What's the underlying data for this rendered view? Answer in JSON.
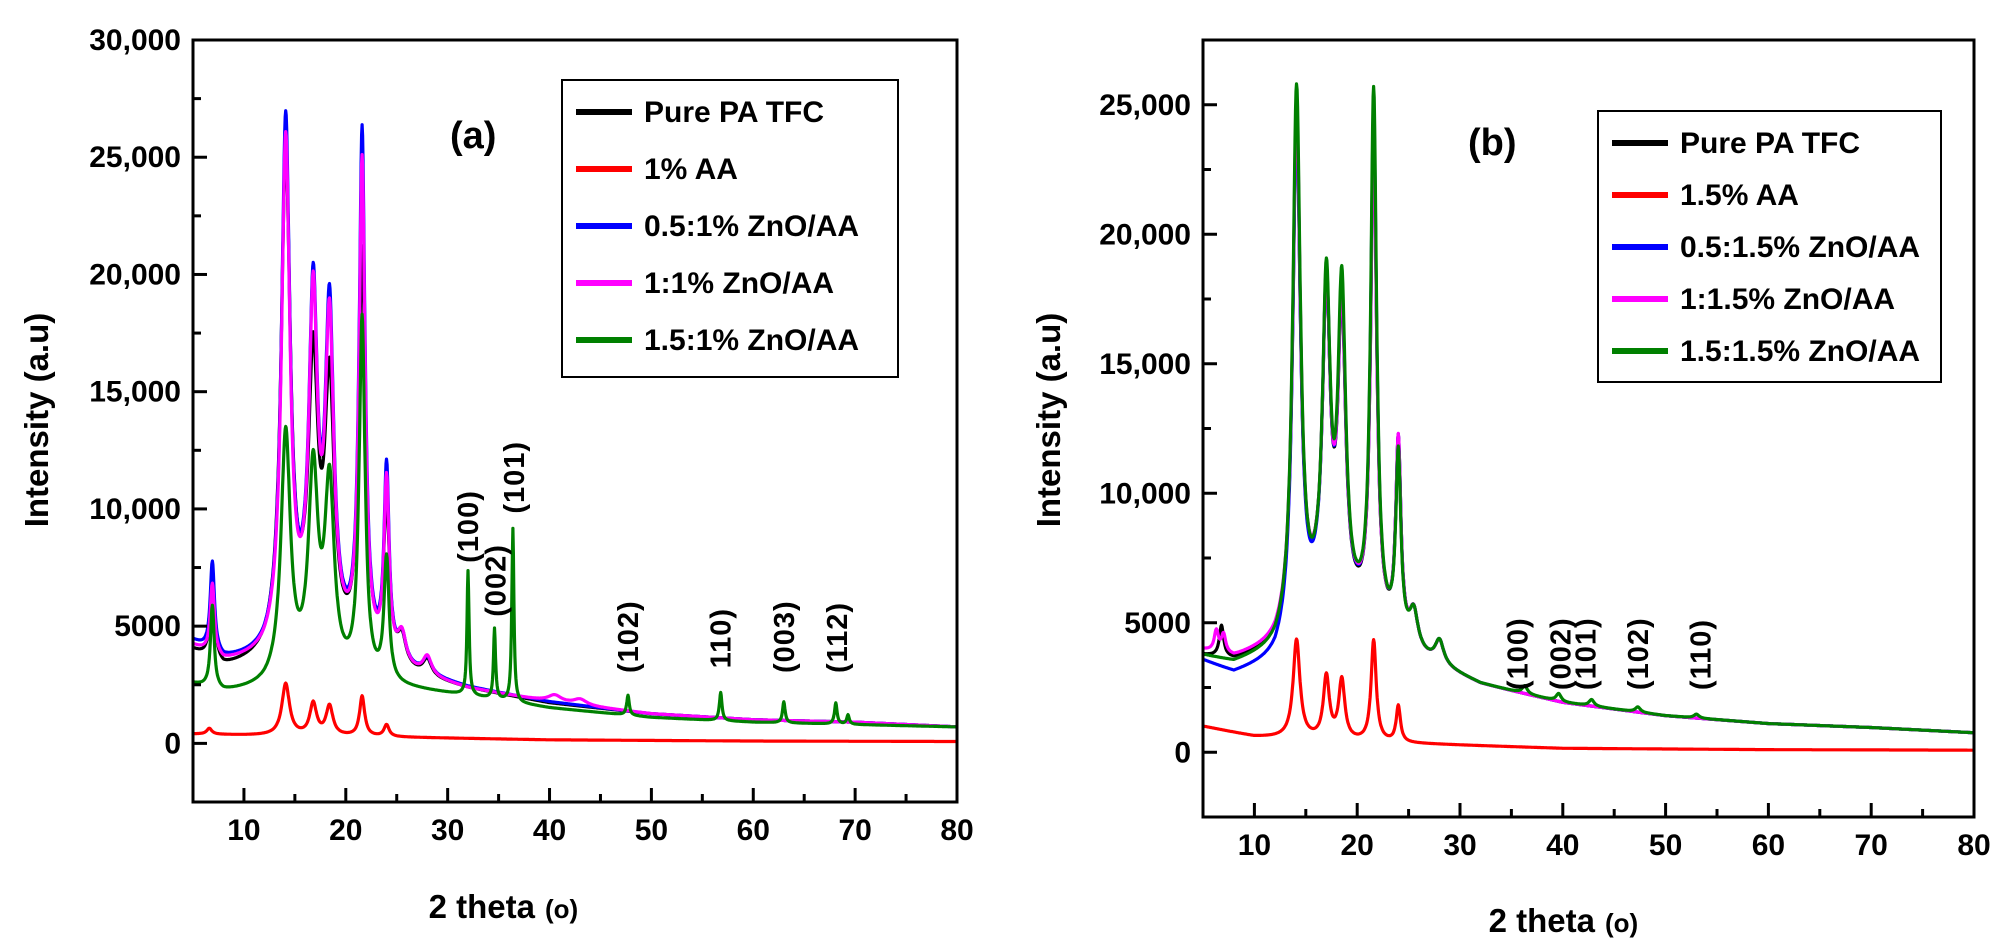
{
  "chart_data": [
    {
      "type": "line",
      "panel_label": "(a)",
      "xlabel": "2 theta",
      "xunit": "(o)",
      "ylabel": "Intensity (a.u)",
      "xlim": [
        5,
        80
      ],
      "ylim": [
        -2500,
        30000
      ],
      "xticks": [
        10,
        20,
        30,
        40,
        50,
        60,
        70,
        80
      ],
      "xtick_labels": [
        "10",
        "20",
        "30",
        "40",
        "50",
        "60",
        "70",
        "80"
      ],
      "yticks": [
        0,
        5000,
        10000,
        15000,
        20000,
        25000,
        30000
      ],
      "ytick_labels": [
        "0",
        "5000",
        "10,000",
        "15,000",
        "20,000",
        "25,000",
        "30,000"
      ],
      "legend_position": "top-right",
      "series": [
        {
          "name": "Pure PA TFC",
          "color": "#000000",
          "baseline": [
            [
              5,
              3900
            ],
            [
              8,
              3150
            ],
            [
              12,
              3400
            ],
            [
              16,
              4000
            ],
            [
              20,
              3700
            ],
            [
              26,
              2900
            ],
            [
              32,
              2300
            ],
            [
              40,
              1700
            ],
            [
              50,
              1250
            ],
            [
              60,
              1000
            ],
            [
              70,
              900
            ],
            [
              80,
              700
            ]
          ],
          "peaks": [
            [
              6.9,
              3800,
              0.25
            ],
            [
              14.1,
              21000,
              0.55
            ],
            [
              16.8,
              11500,
              0.55
            ],
            [
              18.4,
              10800,
              0.55
            ],
            [
              21.6,
              17000,
              0.4
            ],
            [
              24,
              6500,
              0.35
            ],
            [
              25.5,
              1200,
              0.5
            ],
            [
              28,
              700,
              0.5
            ]
          ]
        },
        {
          "name": "1% AA",
          "color": "#ff0000",
          "baseline": [
            [
              5,
              400
            ],
            [
              10,
              350
            ],
            [
              20,
              300
            ],
            [
              40,
              150
            ],
            [
              60,
              100
            ],
            [
              80,
              80
            ]
          ],
          "peaks": [
            [
              6.6,
              250,
              0.3
            ],
            [
              14.1,
              2200,
              0.45
            ],
            [
              16.8,
              1350,
              0.4
            ],
            [
              18.4,
              1250,
              0.4
            ],
            [
              21.6,
              1700,
              0.3
            ],
            [
              24,
              500,
              0.3
            ]
          ]
        },
        {
          "name": "0.5:1% ZnO/AA",
          "color": "#0000ff",
          "baseline": [
            [
              5,
              4300
            ],
            [
              8,
              3500
            ],
            [
              12,
              3600
            ],
            [
              16,
              4300
            ],
            [
              20,
              3900
            ],
            [
              26,
              3000
            ],
            [
              32,
              2350
            ],
            [
              40,
              1750
            ],
            [
              50,
              1250
            ],
            [
              60,
              1000
            ],
            [
              70,
              900
            ],
            [
              80,
              700
            ]
          ],
          "peaks": [
            [
              6.9,
              3800,
              0.25
            ],
            [
              14.1,
              22300,
              0.5
            ],
            [
              16.8,
              14200,
              0.5
            ],
            [
              18.4,
              13700,
              0.5
            ],
            [
              21.6,
              22000,
              0.35
            ],
            [
              24,
              8000,
              0.3
            ],
            [
              25.5,
              1200,
              0.5
            ],
            [
              28,
              700,
              0.5
            ]
          ]
        },
        {
          "name": "1:1% ZnO/AA",
          "color": "#ff00ff",
          "baseline": [
            [
              5,
              4100
            ],
            [
              8,
              3400
            ],
            [
              12,
              3550
            ],
            [
              16,
              4200
            ],
            [
              20,
              3850
            ],
            [
              26,
              2950
            ],
            [
              32,
              2300
            ],
            [
              40,
              1750
            ],
            [
              50,
              1250
            ],
            [
              60,
              1000
            ],
            [
              70,
              900
            ],
            [
              80,
              700
            ]
          ],
          "peaks": [
            [
              6.9,
              3000,
              0.25
            ],
            [
              14.1,
              21500,
              0.5
            ],
            [
              16.8,
              14000,
              0.5
            ],
            [
              18.4,
              13200,
              0.5
            ],
            [
              21.6,
              20800,
              0.35
            ],
            [
              24,
              7500,
              0.3
            ],
            [
              25.5,
              1300,
              0.5
            ],
            [
              28,
              800,
              0.5
            ],
            [
              40.5,
              300,
              0.8
            ],
            [
              43,
              250,
              0.8
            ]
          ]
        },
        {
          "name": "1.5:1% ZnO/AA",
          "color": "#008000",
          "baseline": [
            [
              5,
              2500
            ],
            [
              8,
              2150
            ],
            [
              12,
              2300
            ],
            [
              16,
              2700
            ],
            [
              20,
              2600
            ],
            [
              26,
              2300
            ],
            [
              32,
              2000
            ],
            [
              40,
              1500
            ],
            [
              50,
              1100
            ],
            [
              60,
              900
            ],
            [
              70,
              800
            ],
            [
              80,
              700
            ]
          ],
          "peaks": [
            [
              6.9,
              3500,
              0.22
            ],
            [
              14.1,
              10500,
              0.55
            ],
            [
              16.8,
              8500,
              0.55
            ],
            [
              18.4,
              8000,
              0.55
            ],
            [
              21.6,
              15300,
              0.35
            ],
            [
              24,
              5200,
              0.3
            ],
            [
              32,
              5300,
              0.12
            ],
            [
              34.6,
              3000,
              0.12
            ],
            [
              36.4,
              7400,
              0.12
            ],
            [
              47.7,
              850,
              0.15
            ],
            [
              56.8,
              1200,
              0.15
            ],
            [
              63,
              900,
              0.15
            ],
            [
              68.1,
              900,
              0.15
            ],
            [
              69.3,
              400,
              0.15
            ]
          ]
        }
      ],
      "annotations": [
        {
          "text": "(100)",
          "x": 32,
          "y": 7700
        },
        {
          "text": "(002)",
          "x": 34.7,
          "y": 5400
        },
        {
          "text": "(101)",
          "x": 36.5,
          "y": 9800
        },
        {
          "text": "(102)",
          "x": 47.7,
          "y": 3000
        },
        {
          "text": "110)",
          "x": 56.8,
          "y": 3200
        },
        {
          "text": "(003)",
          "x": 63,
          "y": 3000
        },
        {
          "text": "(112)",
          "x": 68.2,
          "y": 3000
        }
      ]
    },
    {
      "type": "line",
      "panel_label": "(b)",
      "xlabel": "2 theta",
      "xunit": "(o)",
      "ylabel": "Intensity (a.u)",
      "xlim": [
        5,
        80
      ],
      "ylim": [
        -2500,
        27500
      ],
      "xticks": [
        10,
        20,
        30,
        40,
        50,
        60,
        70,
        80
      ],
      "xtick_labels": [
        "10",
        "20",
        "30",
        "40",
        "50",
        "60",
        "70",
        "80"
      ],
      "yticks": [
        0,
        5000,
        10000,
        15000,
        20000,
        25000
      ],
      "ytick_labels": [
        "0",
        "5000",
        "10,000",
        "15,000",
        "20,000",
        "25,000"
      ],
      "legend_position": "top-right",
      "series": [
        {
          "name": "Pure PA TFC",
          "color": "#000000",
          "baseline": [
            [
              5,
              3700
            ],
            [
              8,
              3500
            ],
            [
              12,
              3900
            ],
            [
              16,
              5400
            ],
            [
              20,
              5000
            ],
            [
              26,
              3600
            ],
            [
              32,
              2600
            ],
            [
              40,
              1900
            ],
            [
              50,
              1400
            ],
            [
              60,
              1100
            ],
            [
              70,
              950
            ],
            [
              80,
              750
            ]
          ],
          "peaks": [
            [
              6.8,
              1200,
              0.25
            ],
            [
              14.1,
              19500,
              0.45
            ],
            [
              17,
              11800,
              0.45
            ],
            [
              18.5,
              11200,
              0.45
            ],
            [
              21.6,
              19000,
              0.35
            ],
            [
              24,
              7500,
              0.3
            ],
            [
              25.5,
              1400,
              0.5
            ],
            [
              28,
              900,
              0.5
            ]
          ]
        },
        {
          "name": "1.5% AA",
          "color": "#ff0000",
          "baseline": [
            [
              5,
              1000
            ],
            [
              10,
              600
            ],
            [
              20,
              400
            ],
            [
              40,
              150
            ],
            [
              60,
              100
            ],
            [
              80,
              80
            ]
          ],
          "peaks": [
            [
              14.1,
              3800,
              0.4
            ],
            [
              17,
              2400,
              0.35
            ],
            [
              18.5,
              2300,
              0.35
            ],
            [
              21.6,
              3900,
              0.3
            ],
            [
              24,
              1400,
              0.25
            ]
          ]
        },
        {
          "name": "0.5:1.5% ZnO/AA",
          "color": "#0000ff",
          "baseline": [
            [
              5,
              3500
            ],
            [
              8,
              3000
            ],
            [
              12,
              3400
            ],
            [
              16,
              5200
            ],
            [
              20,
              5000
            ],
            [
              26,
              3600
            ],
            [
              32,
              2600
            ],
            [
              40,
              1900
            ],
            [
              50,
              1400
            ],
            [
              60,
              1100
            ],
            [
              70,
              950
            ],
            [
              80,
              750
            ]
          ],
          "peaks": [
            [
              14.1,
              19800,
              0.45
            ],
            [
              17,
              12000,
              0.45
            ],
            [
              18.5,
              11600,
              0.45
            ],
            [
              21.6,
              19500,
              0.35
            ],
            [
              24,
              7500,
              0.3
            ],
            [
              25.5,
              1400,
              0.5
            ],
            [
              28,
              900,
              0.5
            ]
          ]
        },
        {
          "name": "1:1.5% ZnO/AA",
          "color": "#ff00ff",
          "baseline": [
            [
              5,
              3900
            ],
            [
              8,
              3600
            ],
            [
              12,
              4000
            ],
            [
              16,
              5400
            ],
            [
              20,
              5100
            ],
            [
              26,
              3600
            ],
            [
              32,
              2600
            ],
            [
              40,
              1900
            ],
            [
              50,
              1400
            ],
            [
              60,
              1100
            ],
            [
              70,
              950
            ],
            [
              80,
              750
            ]
          ],
          "peaks": [
            [
              6.3,
              800,
              0.25
            ],
            [
              7,
              700,
              0.25
            ],
            [
              14.1,
              19800,
              0.45
            ],
            [
              17,
              11800,
              0.45
            ],
            [
              18.5,
              11400,
              0.45
            ],
            [
              21.6,
              18800,
              0.35
            ],
            [
              24,
              7500,
              0.3
            ],
            [
              25.5,
              1400,
              0.5
            ],
            [
              28,
              900,
              0.5
            ]
          ]
        },
        {
          "name": "1.5:1.5% ZnO/AA",
          "color": "#008000",
          "baseline": [
            [
              5,
              3700
            ],
            [
              8,
              3400
            ],
            [
              12,
              3800
            ],
            [
              16,
              5200
            ],
            [
              20,
              5000
            ],
            [
              26,
              3600
            ],
            [
              32,
              2600
            ],
            [
              40,
              1900
            ],
            [
              50,
              1400
            ],
            [
              60,
              1100
            ],
            [
              70,
              950
            ],
            [
              80,
              750
            ]
          ],
          "peaks": [
            [
              14.1,
              20800,
              0.45
            ],
            [
              17,
              12300,
              0.45
            ],
            [
              18.5,
              12200,
              0.45
            ],
            [
              21.6,
              20500,
              0.35
            ],
            [
              24,
              7000,
              0.3
            ],
            [
              25.5,
              1400,
              0.5
            ],
            [
              28,
              900,
              0.5
            ],
            [
              36.3,
              300,
              0.3
            ],
            [
              39.6,
              300,
              0.3
            ],
            [
              42.8,
              250,
              0.3
            ],
            [
              47.3,
              200,
              0.3
            ],
            [
              53,
              150,
              0.3
            ]
          ]
        }
      ],
      "annotations": [
        {
          "text": "(100)",
          "x": 35.6,
          "y": 2400
        },
        {
          "text": "(002)",
          "x": 39.8,
          "y": 2400
        },
        {
          "text": "(101)",
          "x": 42.2,
          "y": 2400
        },
        {
          "text": "(102)",
          "x": 47.3,
          "y": 2400
        },
        {
          "text": "(110)",
          "x": 53.4,
          "y": 2400
        }
      ]
    }
  ]
}
